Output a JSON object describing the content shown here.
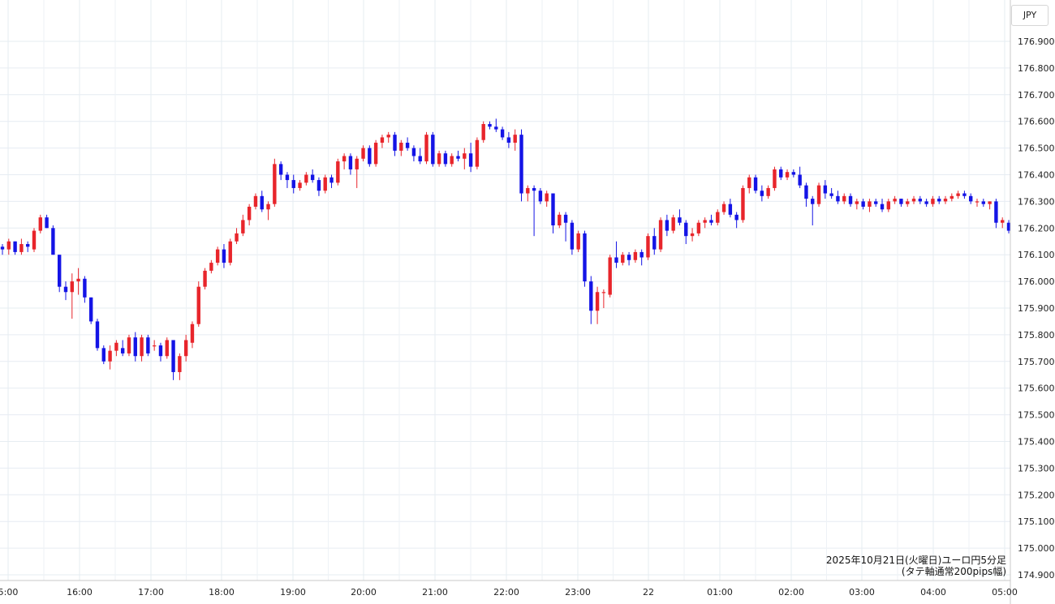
{
  "chart_data": {
    "type": "candlestick",
    "currency_label": "JPY",
    "caption_line1": "2025年10月21日(火曜日)ユーロ円5分足",
    "caption_line2": "(タテ軸通常200pips幅)",
    "y_ticks": [
      "176.900",
      "176.800",
      "176.700",
      "176.600",
      "176.500",
      "176.400",
      "176.300",
      "176.200",
      "176.100",
      "176.000",
      "175.900",
      "175.800",
      "175.700",
      "175.600",
      "175.500",
      "175.400",
      "175.300",
      "175.200",
      "175.100",
      "175.000",
      "174.900"
    ],
    "x_ticks": [
      "5:00",
      "16:00",
      "17:00",
      "18:00",
      "19:00",
      "20:00",
      "21:00",
      "22:00",
      "23:00",
      "22",
      "01:00",
      "02:00",
      "03:00",
      "04:00",
      "05:00"
    ],
    "ylim": [
      174.9,
      176.95
    ],
    "colors": {
      "up": "#e8252b",
      "down": "#1414e6",
      "grid": "#e6ecf2",
      "axis": "#c8c8c8"
    },
    "candles": [
      [
        176.13,
        176.14,
        176.1,
        176.12
      ],
      [
        176.12,
        176.16,
        176.1,
        176.15
      ],
      [
        176.15,
        176.15,
        176.1,
        176.11
      ],
      [
        176.11,
        176.16,
        176.1,
        176.14
      ],
      [
        176.14,
        176.15,
        176.11,
        176.13
      ],
      [
        176.12,
        176.2,
        176.11,
        176.19
      ],
      [
        176.19,
        176.25,
        176.18,
        176.24
      ],
      [
        176.24,
        176.25,
        176.2,
        176.2
      ],
      [
        176.2,
        176.21,
        176.1,
        176.1
      ],
      [
        176.1,
        176.1,
        175.96,
        175.98
      ],
      [
        175.98,
        176.0,
        175.93,
        175.96
      ],
      [
        175.96,
        176.03,
        175.86,
        176.0
      ],
      [
        176.0,
        176.05,
        175.95,
        176.01
      ],
      [
        176.01,
        176.02,
        175.92,
        175.94
      ],
      [
        175.94,
        175.94,
        175.84,
        175.85
      ],
      [
        175.85,
        175.86,
        175.74,
        175.75
      ],
      [
        175.75,
        175.76,
        175.69,
        175.7
      ],
      [
        175.7,
        175.76,
        175.67,
        175.74
      ],
      [
        175.74,
        175.78,
        175.72,
        175.77
      ],
      [
        175.75,
        175.78,
        175.72,
        175.73
      ],
      [
        175.73,
        175.8,
        175.72,
        175.79
      ],
      [
        175.79,
        175.81,
        175.7,
        175.72
      ],
      [
        175.72,
        175.8,
        175.7,
        175.79
      ],
      [
        175.79,
        175.8,
        175.72,
        175.73
      ],
      [
        175.76,
        175.78,
        175.74,
        175.76
      ],
      [
        175.76,
        175.77,
        175.7,
        175.72
      ],
      [
        175.72,
        175.79,
        175.71,
        175.78
      ],
      [
        175.78,
        175.78,
        175.63,
        175.66
      ],
      [
        175.66,
        175.73,
        175.63,
        175.72
      ],
      [
        175.72,
        175.8,
        175.7,
        175.78
      ],
      [
        175.77,
        175.85,
        175.75,
        175.84
      ],
      [
        175.84,
        176.0,
        175.83,
        175.98
      ],
      [
        175.98,
        176.05,
        175.97,
        176.04
      ],
      [
        176.04,
        176.08,
        176.03,
        176.07
      ],
      [
        176.07,
        176.13,
        176.06,
        176.12
      ],
      [
        176.12,
        176.14,
        176.05,
        176.07
      ],
      [
        176.07,
        176.16,
        176.06,
        176.15
      ],
      [
        176.15,
        176.2,
        176.14,
        176.18
      ],
      [
        176.18,
        176.25,
        176.17,
        176.23
      ],
      [
        176.23,
        176.29,
        176.21,
        176.28
      ],
      [
        176.28,
        176.33,
        176.27,
        176.32
      ],
      [
        176.32,
        176.34,
        176.26,
        176.27
      ],
      [
        176.27,
        176.3,
        176.23,
        176.29
      ],
      [
        176.29,
        176.46,
        176.28,
        176.44
      ],
      [
        176.44,
        176.45,
        176.38,
        176.4
      ],
      [
        176.4,
        176.41,
        176.35,
        176.38
      ],
      [
        176.38,
        176.4,
        176.33,
        176.35
      ],
      [
        176.35,
        176.38,
        176.34,
        176.37
      ],
      [
        176.37,
        176.41,
        176.36,
        176.4
      ],
      [
        176.4,
        176.42,
        176.37,
        176.38
      ],
      [
        176.38,
        176.39,
        176.32,
        176.34
      ],
      [
        176.34,
        176.4,
        176.33,
        176.39
      ],
      [
        176.39,
        176.4,
        176.35,
        176.37
      ],
      [
        176.37,
        176.46,
        176.36,
        176.45
      ],
      [
        176.45,
        176.48,
        176.42,
        176.47
      ],
      [
        176.47,
        176.48,
        176.4,
        176.42
      ],
      [
        176.42,
        176.47,
        176.35,
        176.46
      ],
      [
        176.46,
        176.51,
        176.45,
        176.5
      ],
      [
        176.5,
        176.51,
        176.43,
        176.44
      ],
      [
        176.44,
        176.53,
        176.43,
        176.52
      ],
      [
        176.52,
        176.55,
        176.5,
        176.54
      ],
      [
        176.54,
        176.56,
        176.52,
        176.55
      ],
      [
        176.55,
        176.56,
        176.47,
        176.49
      ],
      [
        176.49,
        176.53,
        176.47,
        176.52
      ],
      [
        176.52,
        176.54,
        176.49,
        176.5
      ],
      [
        176.5,
        176.51,
        176.45,
        176.47
      ],
      [
        176.47,
        176.5,
        176.44,
        176.45
      ],
      [
        176.45,
        176.56,
        176.44,
        176.55
      ],
      [
        176.55,
        176.56,
        176.43,
        176.44
      ],
      [
        176.44,
        176.49,
        176.43,
        176.48
      ],
      [
        176.48,
        176.49,
        176.43,
        176.44
      ],
      [
        176.44,
        176.48,
        176.43,
        176.47
      ],
      [
        176.47,
        176.49,
        176.45,
        176.46
      ],
      [
        176.46,
        176.5,
        176.42,
        176.48
      ],
      [
        176.48,
        176.52,
        176.41,
        176.43
      ],
      [
        176.43,
        176.54,
        176.42,
        176.53
      ],
      [
        176.53,
        176.6,
        176.52,
        176.59
      ],
      [
        176.59,
        176.6,
        176.57,
        176.58
      ],
      [
        176.58,
        176.61,
        176.56,
        176.57
      ],
      [
        176.57,
        176.58,
        176.53,
        176.54
      ],
      [
        176.54,
        176.56,
        176.5,
        176.52
      ],
      [
        176.52,
        176.57,
        176.49,
        176.55
      ],
      [
        176.55,
        176.57,
        176.3,
        176.33
      ],
      [
        176.33,
        176.36,
        176.3,
        176.35
      ],
      [
        176.35,
        176.36,
        176.17,
        176.34
      ],
      [
        176.34,
        176.35,
        176.29,
        176.3
      ],
      [
        176.3,
        176.34,
        176.28,
        176.33
      ],
      [
        176.33,
        176.33,
        176.18,
        176.21
      ],
      [
        176.21,
        176.26,
        176.2,
        176.25
      ],
      [
        176.25,
        176.26,
        176.15,
        176.22
      ],
      [
        176.22,
        176.23,
        176.1,
        176.12
      ],
      [
        176.12,
        176.19,
        176.11,
        176.18
      ],
      [
        176.18,
        176.19,
        175.98,
        176.0
      ],
      [
        176.0,
        176.02,
        175.84,
        175.89
      ],
      [
        175.89,
        175.98,
        175.84,
        175.96
      ],
      [
        175.96,
        175.97,
        175.9,
        175.96
      ],
      [
        175.95,
        176.1,
        175.94,
        176.09
      ],
      [
        176.09,
        176.15,
        176.05,
        176.07
      ],
      [
        176.07,
        176.11,
        176.06,
        176.1
      ],
      [
        176.1,
        176.11,
        176.06,
        176.08
      ],
      [
        176.08,
        176.12,
        176.07,
        176.11
      ],
      [
        176.11,
        176.12,
        176.06,
        176.09
      ],
      [
        176.09,
        176.18,
        176.08,
        176.17
      ],
      [
        176.17,
        176.2,
        176.1,
        176.12
      ],
      [
        176.12,
        176.24,
        176.11,
        176.23
      ],
      [
        176.23,
        176.25,
        176.17,
        176.19
      ],
      [
        176.19,
        176.25,
        176.18,
        176.24
      ],
      [
        176.24,
        176.27,
        176.21,
        176.22
      ],
      [
        176.22,
        176.23,
        176.14,
        176.17
      ],
      [
        176.17,
        176.2,
        176.15,
        176.18
      ],
      [
        176.18,
        176.23,
        176.17,
        176.22
      ],
      [
        176.22,
        176.24,
        176.2,
        176.23
      ],
      [
        176.23,
        176.25,
        176.21,
        176.22
      ],
      [
        176.22,
        176.27,
        176.21,
        176.26
      ],
      [
        176.26,
        176.3,
        176.25,
        176.29
      ],
      [
        176.29,
        176.31,
        176.24,
        176.25
      ],
      [
        176.25,
        176.26,
        176.2,
        176.23
      ],
      [
        176.23,
        176.36,
        176.22,
        176.35
      ],
      [
        176.35,
        176.4,
        176.33,
        176.39
      ],
      [
        176.39,
        176.4,
        176.33,
        176.34
      ],
      [
        176.34,
        176.36,
        176.3,
        176.32
      ],
      [
        176.32,
        176.36,
        176.31,
        176.35
      ],
      [
        176.35,
        176.43,
        176.34,
        176.42
      ],
      [
        176.42,
        176.43,
        176.38,
        176.39
      ],
      [
        176.39,
        176.42,
        176.38,
        176.41
      ],
      [
        176.41,
        176.42,
        176.39,
        176.4
      ],
      [
        176.4,
        176.43,
        176.35,
        176.36
      ],
      [
        176.36,
        176.37,
        176.28,
        176.31
      ],
      [
        176.31,
        176.32,
        176.21,
        176.29
      ],
      [
        176.29,
        176.37,
        176.28,
        176.36
      ],
      [
        176.36,
        176.38,
        176.31,
        176.33
      ],
      [
        176.33,
        176.35,
        176.31,
        176.32
      ],
      [
        176.32,
        176.34,
        176.29,
        176.3
      ],
      [
        176.3,
        176.33,
        176.29,
        176.32
      ],
      [
        176.32,
        176.33,
        176.28,
        176.29
      ],
      [
        176.29,
        176.31,
        176.27,
        176.3
      ],
      [
        176.3,
        176.31,
        176.27,
        176.28
      ],
      [
        176.28,
        176.31,
        176.26,
        176.3
      ],
      [
        176.3,
        176.31,
        176.28,
        176.29
      ],
      [
        176.29,
        176.31,
        176.26,
        176.27
      ],
      [
        176.27,
        176.31,
        176.26,
        176.3
      ],
      [
        176.3,
        176.32,
        176.29,
        176.31
      ],
      [
        176.31,
        176.31,
        176.28,
        176.29
      ],
      [
        176.29,
        176.31,
        176.28,
        176.3
      ],
      [
        176.3,
        176.32,
        176.29,
        176.31
      ],
      [
        176.31,
        176.32,
        176.29,
        176.3
      ],
      [
        176.3,
        176.31,
        176.28,
        176.29
      ],
      [
        176.29,
        176.32,
        176.28,
        176.31
      ],
      [
        176.31,
        176.32,
        176.29,
        176.3
      ],
      [
        176.3,
        176.32,
        176.29,
        176.31
      ],
      [
        176.31,
        176.33,
        176.3,
        176.32
      ],
      [
        176.32,
        176.34,
        176.31,
        176.33
      ],
      [
        176.33,
        176.34,
        176.31,
        176.32
      ],
      [
        176.32,
        176.33,
        176.29,
        176.3
      ],
      [
        176.3,
        176.31,
        176.28,
        176.3
      ],
      [
        176.3,
        176.31,
        176.28,
        176.29
      ],
      [
        176.29,
        176.3,
        176.27,
        176.3
      ],
      [
        176.3,
        176.31,
        176.2,
        176.22
      ],
      [
        176.22,
        176.24,
        176.2,
        176.23
      ],
      [
        176.22,
        176.23,
        176.18,
        176.19
      ]
    ]
  }
}
